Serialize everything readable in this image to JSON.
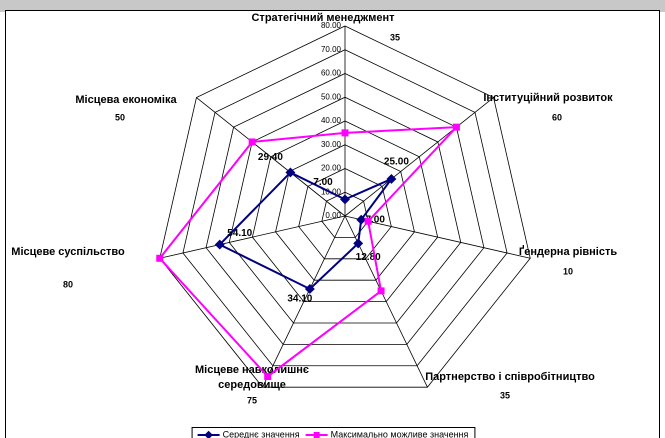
{
  "chart_data": {
    "type": "radar",
    "categories": [
      "Стратегічний менеджмент",
      "Інституційний розвиток",
      "Ґендерна рівність",
      "Партнерство і співробітництво",
      "Місцеве навколишнє середовище",
      "Місцеве суспільство",
      "Місцева економіка"
    ],
    "series": [
      {
        "name": "Середнє значення",
        "color": "#000080",
        "values": [
          7,
          25,
          7,
          12.8,
          34.1,
          54.1,
          29.4
        ],
        "value_labels": [
          "7.00",
          "25.00",
          "7.00",
          "12.80",
          "34.10",
          "54.10",
          "29.40"
        ]
      },
      {
        "name": "Максимально можливе значення",
        "color": "#ff00ff",
        "values": [
          35,
          60,
          10,
          35,
          75,
          80,
          50
        ]
      }
    ],
    "ylim": [
      0,
      80
    ],
    "yticks": [
      {
        "value": 0,
        "label": "0.00"
      },
      {
        "value": 10,
        "label": "10.00"
      },
      {
        "value": 20,
        "label": "20.00"
      },
      {
        "value": 30,
        "label": "30.00"
      },
      {
        "value": 40,
        "label": "40.00"
      },
      {
        "value": 50,
        "label": "50.00"
      },
      {
        "value": 60,
        "label": "60.00"
      },
      {
        "value": 70,
        "label": "70.00"
      },
      {
        "value": 80,
        "label": "80.00"
      }
    ],
    "grid": true,
    "legend": "bottom"
  }
}
